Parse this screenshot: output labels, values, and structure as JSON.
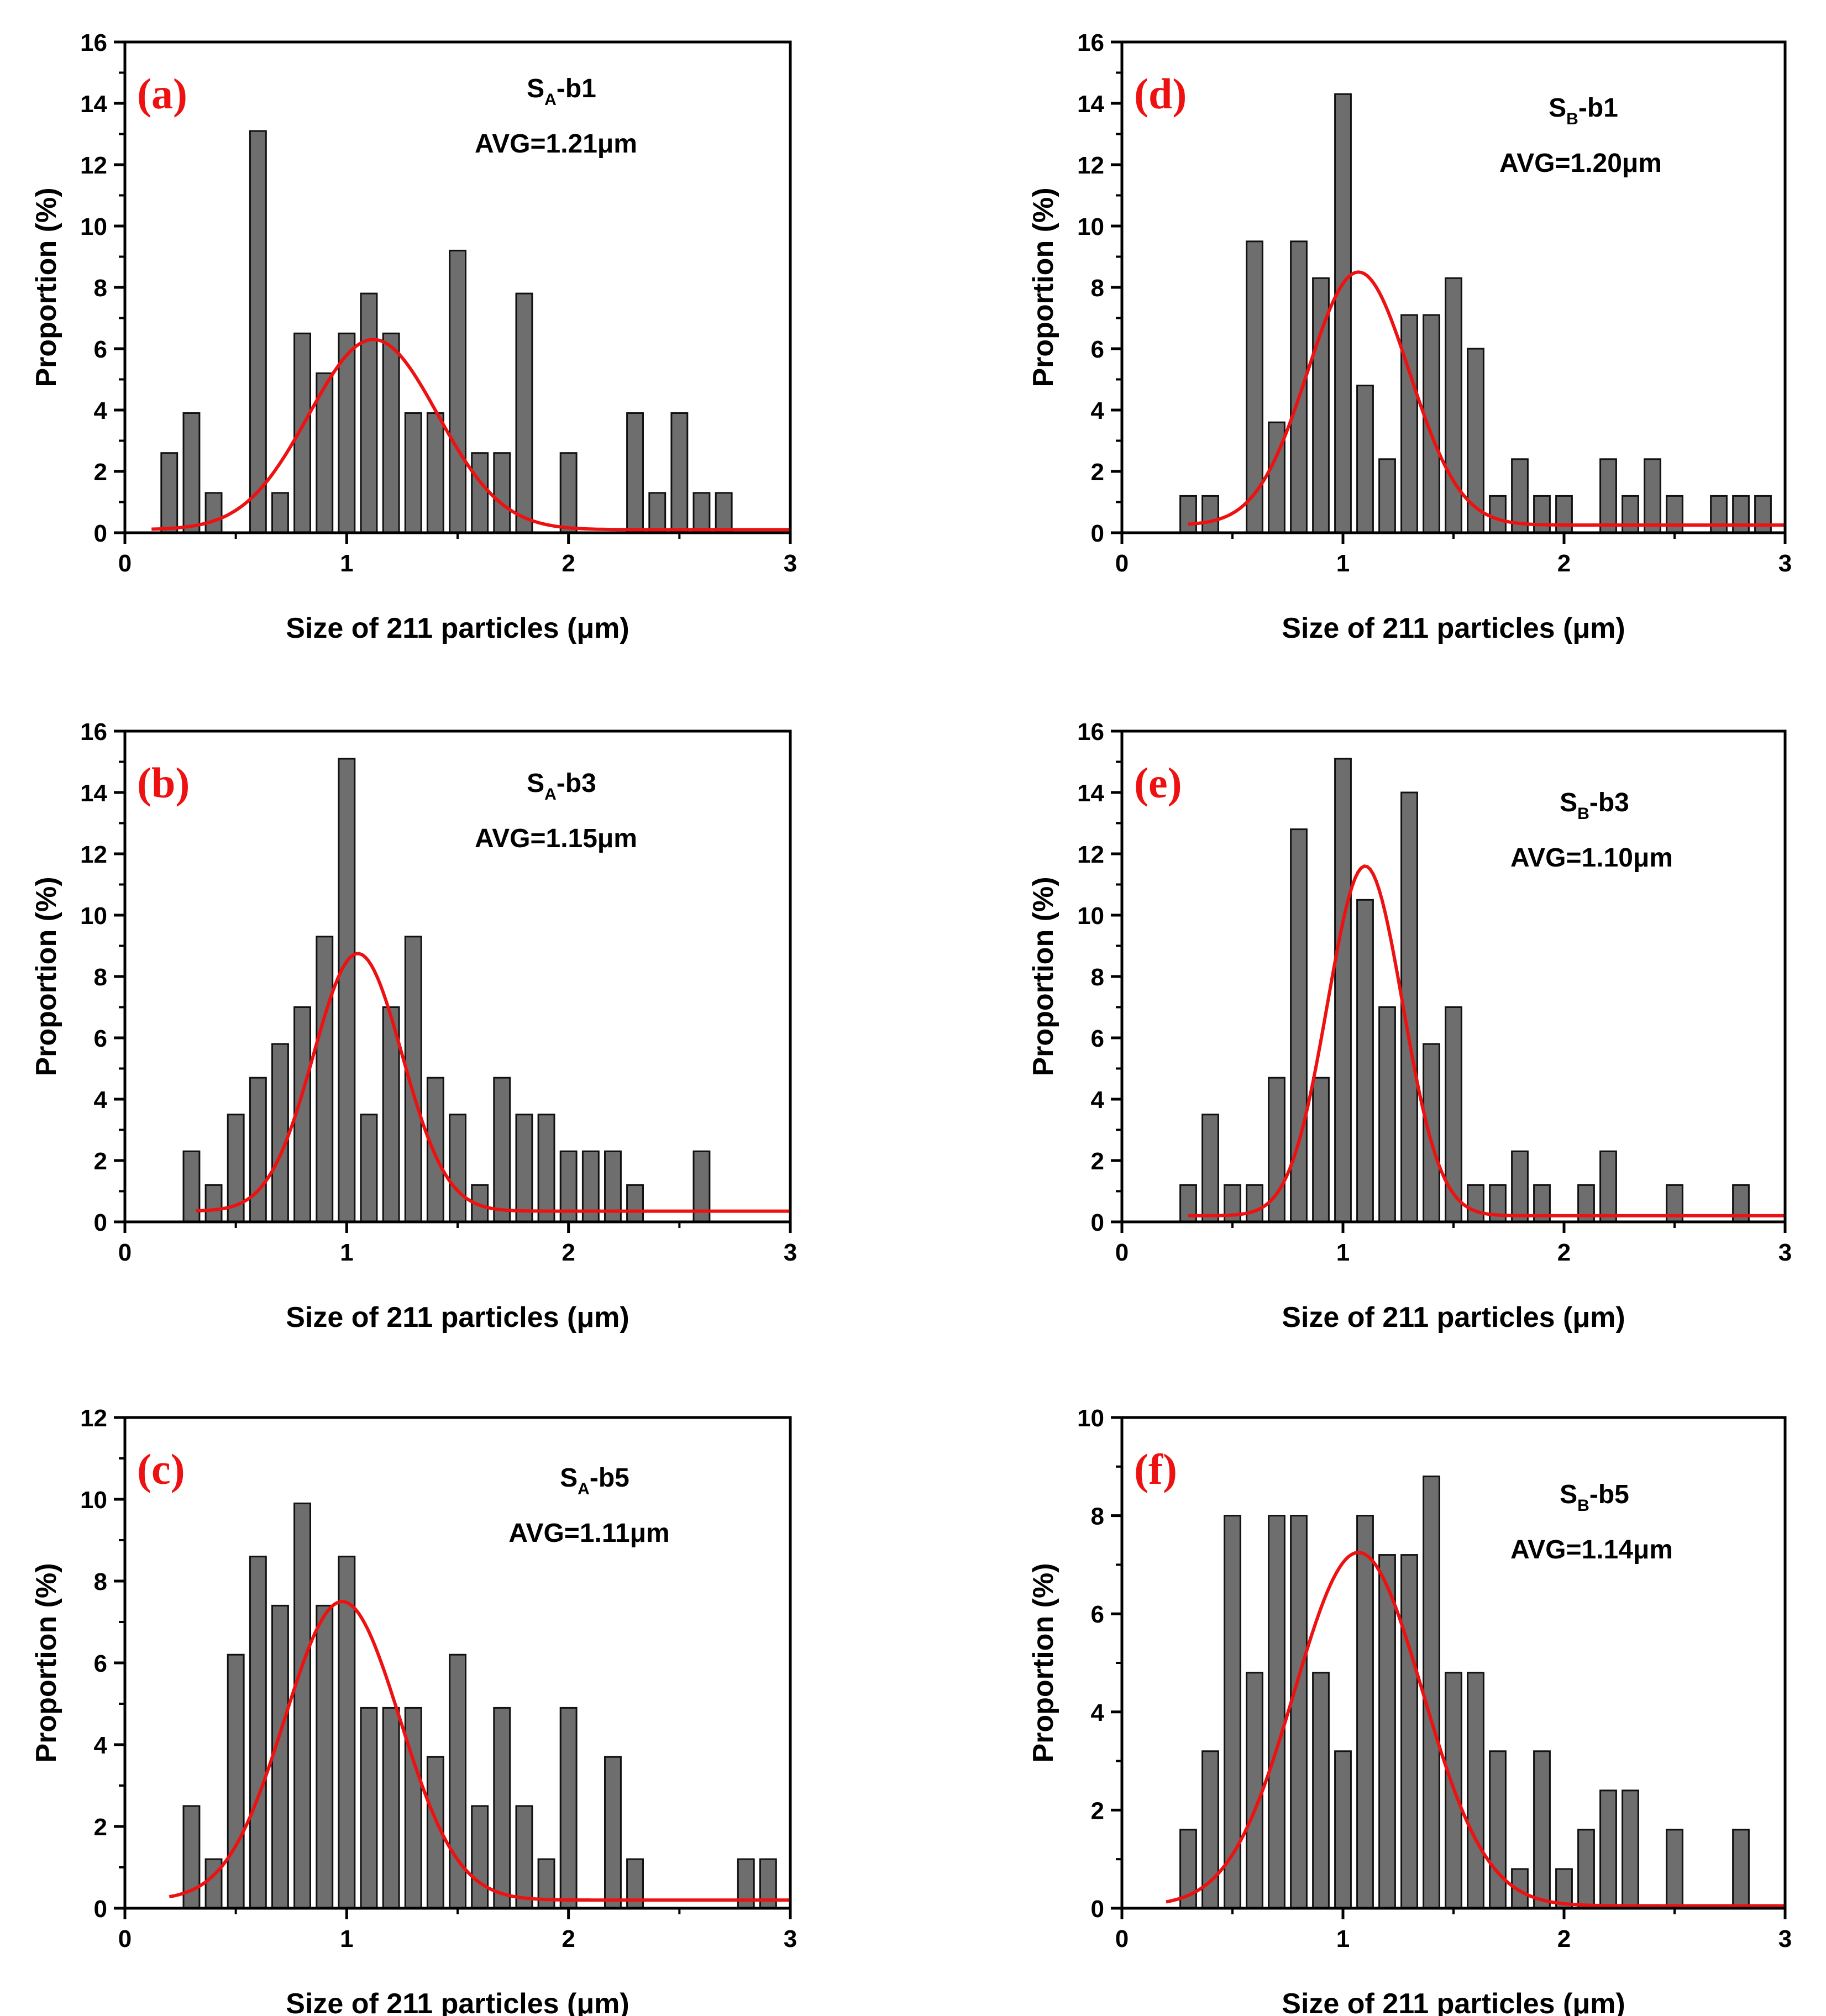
{
  "figure": {
    "colors": {
      "bar_fill": "#6e6e6e",
      "bar_stroke": "#111111",
      "fit_line": "#ee1111",
      "panel_tag": "#ee1111",
      "axis": "#000000"
    }
  },
  "chart_data": [
    {
      "id": "a",
      "type": "bar",
      "tag": "(a)",
      "sample": {
        "main": "S",
        "sub": "A",
        "suffix": "-b1"
      },
      "avg_label": "AVG=1.21μm",
      "xlabel": "Size of 211 particles (μm)",
      "ylabel": "Proportion (%)",
      "xlim": [
        0,
        3
      ],
      "ylim": [
        0,
        16
      ],
      "xticks": [
        0,
        1,
        2,
        3
      ],
      "yticks": [
        0,
        2,
        4,
        6,
        8,
        10,
        12,
        14,
        16
      ],
      "bin_width": 0.1,
      "x": [
        0.2,
        0.3,
        0.4,
        0.6,
        0.7,
        0.8,
        0.9,
        1.0,
        1.1,
        1.2,
        1.3,
        1.4,
        1.5,
        1.6,
        1.7,
        1.8,
        2.0,
        2.3,
        2.4,
        2.5,
        2.6,
        2.7
      ],
      "values": [
        2.6,
        3.9,
        1.3,
        13.1,
        1.3,
        6.5,
        5.2,
        6.5,
        7.8,
        6.5,
        3.9,
        3.9,
        9.2,
        2.6,
        2.6,
        7.8,
        2.6,
        3.9,
        1.3,
        3.9,
        1.3,
        1.3
      ],
      "fit": {
        "type": "gaussian",
        "y0": 0.1,
        "A": 6.2,
        "xc": 1.12,
        "w": 0.58,
        "x_start": 0.12,
        "x_end": 3.0
      }
    },
    {
      "id": "b",
      "type": "bar",
      "tag": "(b)",
      "sample": {
        "main": "S",
        "sub": "A",
        "suffix": "-b3"
      },
      "avg_label": "AVG=1.15μm",
      "xlabel": "Size of 211 particles (μm)",
      "ylabel": "Proportion (%)",
      "xlim": [
        0,
        3
      ],
      "ylim": [
        0,
        16
      ],
      "xticks": [
        0,
        1,
        2,
        3
      ],
      "yticks": [
        0,
        2,
        4,
        6,
        8,
        10,
        12,
        14,
        16
      ],
      "bin_width": 0.1,
      "x": [
        0.3,
        0.4,
        0.5,
        0.6,
        0.7,
        0.8,
        0.9,
        1.0,
        1.1,
        1.2,
        1.3,
        1.4,
        1.5,
        1.6,
        1.7,
        1.8,
        1.9,
        2.0,
        2.1,
        2.2,
        2.3,
        2.6
      ],
      "values": [
        2.3,
        1.2,
        3.5,
        4.7,
        5.8,
        7.0,
        9.3,
        15.1,
        3.5,
        7.0,
        9.3,
        4.7,
        3.5,
        1.2,
        4.7,
        3.5,
        3.5,
        2.3,
        2.3,
        2.3,
        1.2,
        2.3
      ],
      "fit": {
        "type": "gaussian",
        "y0": 0.35,
        "A": 8.4,
        "xc": 1.05,
        "w": 0.4,
        "x_start": 0.32,
        "x_end": 3.0
      }
    },
    {
      "id": "c",
      "type": "bar",
      "tag": "(c)",
      "sample": {
        "main": "S",
        "sub": "A",
        "suffix": "-b5"
      },
      "avg_label": "AVG=1.11μm",
      "xlabel": "Size of 211 particles (μm)",
      "ylabel": "Proportion (%)",
      "xlim": [
        0,
        3
      ],
      "ylim": [
        0,
        12
      ],
      "xticks": [
        0,
        1,
        2,
        3
      ],
      "yticks": [
        0,
        2,
        4,
        6,
        8,
        10,
        12
      ],
      "bin_width": 0.1,
      "x": [
        0.3,
        0.4,
        0.5,
        0.6,
        0.7,
        0.8,
        0.9,
        1.0,
        1.1,
        1.2,
        1.3,
        1.4,
        1.5,
        1.6,
        1.7,
        1.8,
        1.9,
        2.0,
        2.2,
        2.3,
        2.8,
        2.9
      ],
      "values": [
        2.5,
        1.2,
        6.2,
        8.6,
        7.4,
        9.9,
        7.4,
        8.6,
        4.9,
        4.9,
        4.9,
        3.7,
        6.2,
        2.5,
        4.9,
        2.5,
        1.2,
        4.9,
        3.7,
        1.2,
        1.2,
        1.2
      ],
      "fit": {
        "type": "gaussian",
        "y0": 0.2,
        "A": 7.3,
        "xc": 0.98,
        "w": 0.52,
        "x_start": 0.2,
        "x_end": 3.0
      }
    },
    {
      "id": "d",
      "type": "bar",
      "tag": "(d)",
      "sample": {
        "main": "S",
        "sub": "B",
        "suffix": "-b1"
      },
      "avg_label": "AVG=1.20μm",
      "xlabel": "Size of 211 particles (μm)",
      "ylabel": "Proportion (%)",
      "xlim": [
        0,
        3
      ],
      "ylim": [
        0,
        16
      ],
      "xticks": [
        0,
        1,
        2,
        3
      ],
      "yticks": [
        0,
        2,
        4,
        6,
        8,
        10,
        12,
        14,
        16
      ],
      "bin_width": 0.1,
      "x": [
        0.3,
        0.4,
        0.6,
        0.7,
        0.8,
        0.9,
        1.0,
        1.1,
        1.2,
        1.3,
        1.4,
        1.5,
        1.6,
        1.7,
        1.8,
        1.9,
        2.0,
        2.2,
        2.3,
        2.4,
        2.5,
        2.7,
        2.8,
        2.9
      ],
      "values": [
        1.2,
        1.2,
        9.5,
        3.6,
        9.5,
        8.3,
        14.3,
        4.8,
        2.4,
        7.1,
        7.1,
        8.3,
        6.0,
        1.2,
        2.4,
        1.2,
        1.2,
        2.4,
        1.2,
        2.4,
        1.2,
        1.2,
        1.2,
        1.2
      ],
      "fit": {
        "type": "gaussian",
        "y0": 0.25,
        "A": 8.25,
        "xc": 1.07,
        "w": 0.46,
        "x_start": 0.3,
        "x_end": 3.0
      }
    },
    {
      "id": "e",
      "type": "bar",
      "tag": "(e)",
      "sample": {
        "main": "S",
        "sub": "B",
        "suffix": "-b3"
      },
      "avg_label": "AVG=1.10μm",
      "xlabel": "Size of 211 particles (μm)",
      "ylabel": "Proportion (%)",
      "xlim": [
        0,
        3
      ],
      "ylim": [
        0,
        16
      ],
      "xticks": [
        0,
        1,
        2,
        3
      ],
      "yticks": [
        0,
        2,
        4,
        6,
        8,
        10,
        12,
        14,
        16
      ],
      "bin_width": 0.1,
      "x": [
        0.3,
        0.4,
        0.5,
        0.6,
        0.7,
        0.8,
        0.9,
        1.0,
        1.1,
        1.2,
        1.3,
        1.4,
        1.5,
        1.6,
        1.7,
        1.8,
        1.9,
        2.1,
        2.2,
        2.5,
        2.8
      ],
      "values": [
        1.2,
        3.5,
        1.2,
        1.2,
        4.7,
        12.8,
        4.7,
        15.1,
        10.5,
        7.0,
        14.0,
        5.8,
        7.0,
        1.2,
        1.2,
        2.3,
        1.2,
        1.2,
        2.3,
        1.2,
        1.2
      ],
      "fit": {
        "type": "gaussian",
        "y0": 0.2,
        "A": 11.4,
        "xc": 1.1,
        "w": 0.34,
        "x_start": 0.3,
        "x_end": 3.0
      }
    },
    {
      "id": "f",
      "type": "bar",
      "tag": "(f)",
      "sample": {
        "main": "S",
        "sub": "B",
        "suffix": "-b5"
      },
      "avg_label": "AVG=1.14μm",
      "xlabel": "Size of 211 particles (μm)",
      "ylabel": "Proportion (%)",
      "xlim": [
        0,
        3
      ],
      "ylim": [
        0,
        10
      ],
      "xticks": [
        0,
        1,
        2,
        3
      ],
      "yticks": [
        0,
        2,
        4,
        6,
        8,
        10
      ],
      "bin_width": 0.1,
      "x": [
        0.3,
        0.4,
        0.5,
        0.6,
        0.7,
        0.8,
        0.9,
        1.0,
        1.1,
        1.2,
        1.3,
        1.4,
        1.5,
        1.6,
        1.7,
        1.8,
        1.9,
        2.0,
        2.1,
        2.2,
        2.3,
        2.5,
        2.8
      ],
      "values": [
        1.6,
        3.2,
        8.0,
        4.8,
        8.0,
        8.0,
        4.8,
        3.2,
        8.0,
        7.2,
        7.2,
        8.8,
        4.8,
        4.8,
        3.2,
        0.8,
        3.2,
        0.8,
        1.6,
        2.4,
        2.4,
        1.6,
        1.6
      ],
      "fit": {
        "type": "gaussian",
        "y0": 0.05,
        "A": 7.2,
        "xc": 1.07,
        "w": 0.58,
        "x_start": 0.2,
        "x_end": 3.0
      }
    }
  ]
}
